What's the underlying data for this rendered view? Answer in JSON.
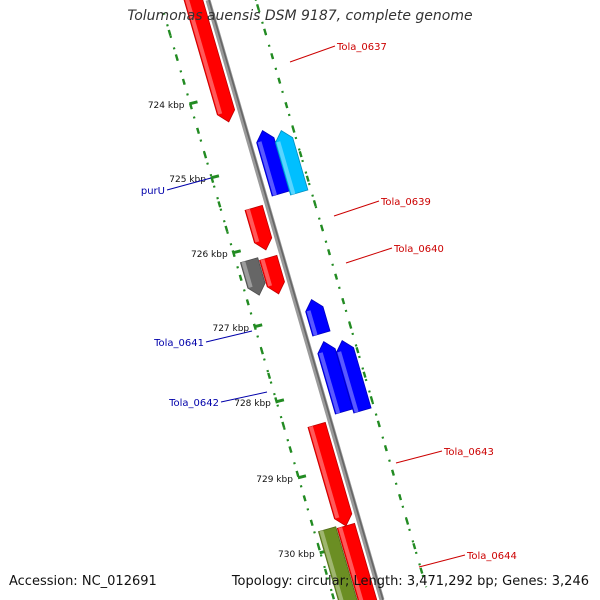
{
  "title": "Tolumonas auensis DSM 9187, complete genome",
  "footer": {
    "accession_label": "Accession:",
    "accession": "NC_012691",
    "topology_label": "Topology:",
    "topology": "circular",
    "length_label": "Length:",
    "length": "3,471,292 bp",
    "genes_label": "Genes:",
    "genes": "3,246"
  },
  "colors": {
    "forward_gene": "#ff0000",
    "reverse_gene": "#0000ff",
    "rna_gene": "#00bfff",
    "pseudo_gene": "#666666",
    "other_gene": "#6b8e23",
    "backbone": "#888888",
    "ruler": "#228b22",
    "forward_label": "#cc0000",
    "reverse_label": "#0000aa"
  },
  "ruler_ticks": [
    "724 kbp",
    "725 kbp",
    "726 kbp",
    "727 kbp",
    "728 kbp",
    "729 kbp",
    "730 kbp"
  ],
  "gene_labels": [
    {
      "text": "Tola_0637",
      "strand": "forward"
    },
    {
      "text": "purU",
      "strand": "reverse"
    },
    {
      "text": "Tola_0639",
      "strand": "forward"
    },
    {
      "text": "Tola_0640",
      "strand": "forward"
    },
    {
      "text": "Tola_0641",
      "strand": "reverse"
    },
    {
      "text": "Tola_0642",
      "strand": "reverse"
    },
    {
      "text": "Tola_0643",
      "strand": "forward"
    },
    {
      "text": "Tola_0644",
      "strand": "forward"
    }
  ]
}
